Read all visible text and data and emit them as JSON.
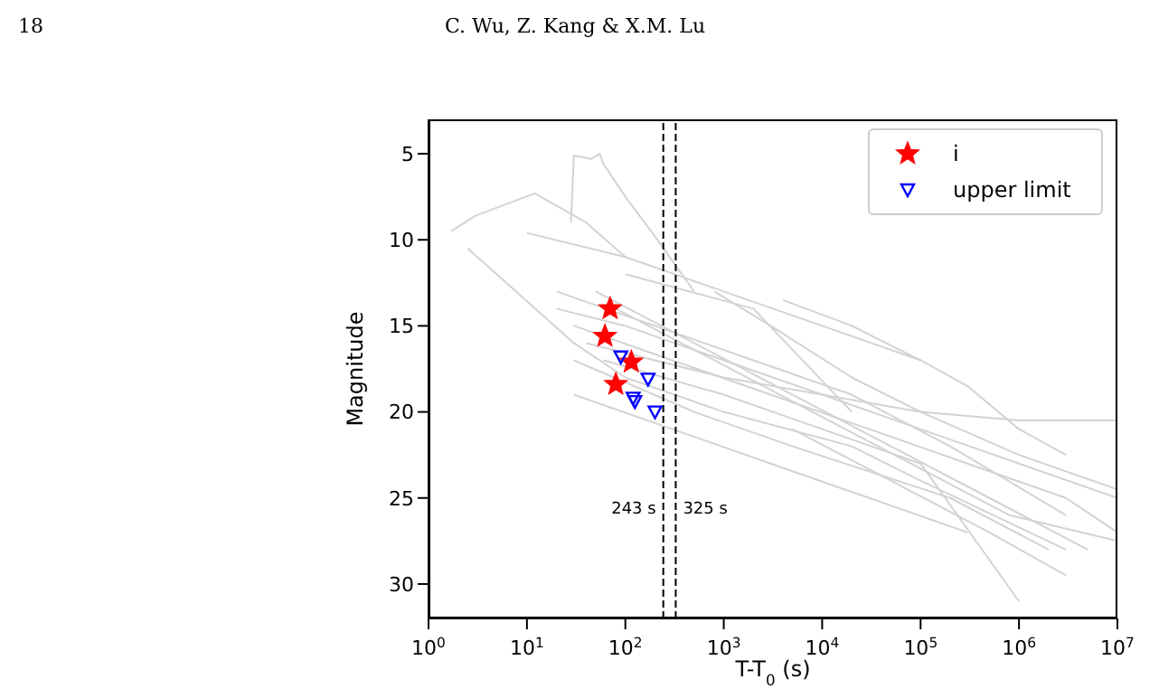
{
  "chart_data": {
    "type": "scatter",
    "xlabel": "T-T$_{0}$ (s)",
    "ylabel": "Magnitude",
    "log": "x",
    "xlim": [
      1,
      10000000
    ],
    "ylim": [
      32,
      3
    ],
    "xticks": [
      {
        "value": 1,
        "label": "10$^{0}$"
      },
      {
        "value": 10,
        "label": "10$^{1}$"
      },
      {
        "value": 100,
        "label": "10$^{2}$"
      },
      {
        "value": 1000,
        "label": "10$^{3}$"
      },
      {
        "value": 10000,
        "label": "10$^{4}$"
      },
      {
        "value": 100000,
        "label": "10$^{5}$"
      },
      {
        "value": 1000000,
        "label": "10$^{6}$"
      },
      {
        "value": 10000000,
        "label": "10$^{7}$"
      }
    ],
    "yticks": [
      5,
      10,
      15,
      20,
      25,
      30
    ],
    "grid": false,
    "legend": "top right",
    "annotations": [
      "18",
      "C. Wu, Z. Kang & X.M. Lu"
    ],
    "ref_lines": [
      {
        "axis": "x",
        "value": 243,
        "label": "243 s",
        "color": "#000000",
        "line_style": "dashed"
      },
      {
        "axis": "x",
        "value": 325,
        "label": "325 s",
        "color": "#000000",
        "line_style": "dashed"
      }
    ],
    "series": [
      {
        "type": "line",
        "color": "#d3d3d3",
        "marker": "none",
        "x": [
          1.7,
          3,
          12,
          40,
          100
        ],
        "values": [
          9.5,
          8.6,
          7.3,
          9,
          11
        ]
      },
      {
        "type": "line",
        "color": "#d3d3d3",
        "marker": "none",
        "x": [
          28,
          30,
          45,
          55,
          60,
          100,
          200,
          500
        ],
        "values": [
          9,
          5.1,
          5.3,
          5,
          5.6,
          7.5,
          9.8,
          13
        ]
      },
      {
        "type": "line",
        "color": "#d3d3d3",
        "marker": "none",
        "x": [
          2.5,
          30,
          100
        ],
        "values": [
          10.5,
          16,
          18
        ]
      },
      {
        "type": "line",
        "color": "#d3d3d3",
        "marker": "none",
        "x": [
          10,
          100,
          1000,
          10000,
          100000
        ],
        "values": [
          9.6,
          11,
          13,
          15,
          17
        ]
      },
      {
        "type": "line",
        "color": "#d3d3d3",
        "marker": "none",
        "x": [
          4000,
          20000,
          100000,
          300000,
          1000000,
          3000000
        ],
        "values": [
          13.5,
          15,
          17,
          18.5,
          21,
          22.5
        ]
      },
      {
        "type": "line",
        "color": "#d3d3d3",
        "marker": "none",
        "x": [
          20,
          100,
          1000,
          10000,
          100000,
          1000000,
          10000000
        ],
        "values": [
          14,
          15,
          17,
          19,
          21,
          23,
          25
        ]
      },
      {
        "type": "line",
        "color": "#d3d3d3",
        "marker": "none",
        "x": [
          30,
          300,
          3000,
          30000,
          300000,
          3000000,
          10000000
        ],
        "values": [
          15,
          17,
          19,
          21,
          23,
          25,
          27
        ]
      },
      {
        "type": "line",
        "color": "#d3d3d3",
        "marker": "none",
        "x": [
          50,
          500,
          5000,
          50000,
          500000,
          5000000
        ],
        "values": [
          13,
          16,
          19,
          22,
          25,
          28
        ]
      },
      {
        "type": "line",
        "color": "#d3d3d3",
        "marker": "none",
        "x": [
          40,
          1000,
          10000,
          100000,
          1000000,
          10000000
        ],
        "values": [
          16,
          18,
          19,
          20,
          20.5,
          20.5
        ]
      },
      {
        "type": "line",
        "color": "#d3d3d3",
        "marker": "none",
        "x": [
          60,
          1000,
          10000,
          100000,
          1000000
        ],
        "values": [
          17,
          19,
          21,
          23,
          31
        ]
      },
      {
        "type": "line",
        "color": "#d3d3d3",
        "marker": "none",
        "x": [
          100,
          1000,
          20000,
          100000,
          3000000
        ],
        "values": [
          18,
          20,
          22,
          24,
          28
        ]
      },
      {
        "type": "line",
        "color": "#d3d3d3",
        "marker": "none",
        "x": [
          20,
          200,
          2000,
          20000,
          200000,
          3000000
        ],
        "values": [
          13,
          15,
          17,
          19,
          22,
          26
        ]
      },
      {
        "type": "line",
        "color": "#d3d3d3",
        "marker": "none",
        "x": [
          80,
          800,
          8000,
          80000,
          800000,
          10000000
        ],
        "values": [
          14,
          17,
          20,
          23,
          26,
          27.5
        ]
      },
      {
        "type": "line",
        "color": "#d3d3d3",
        "marker": "none",
        "x": [
          30,
          300,
          3000,
          30000,
          300000
        ],
        "values": [
          19,
          21,
          23,
          25,
          27
        ]
      },
      {
        "type": "line",
        "color": "#d3d3d3",
        "marker": "none",
        "x": [
          100,
          2000,
          20000
        ],
        "values": [
          12,
          14,
          20
        ]
      },
      {
        "type": "line",
        "color": "#d3d3d3",
        "marker": "none",
        "x": [
          5000,
          50000,
          500000,
          3000000
        ],
        "values": [
          21,
          24,
          27,
          29.5
        ]
      },
      {
        "type": "line",
        "color": "#d3d3d3",
        "marker": "none",
        "x": [
          30,
          500,
          5000,
          200000,
          2000000
        ],
        "values": [
          17,
          20,
          22,
          25,
          28
        ]
      },
      {
        "type": "line",
        "color": "#d3d3d3",
        "marker": "none",
        "x": [
          800,
          3000,
          20000,
          100000,
          1000000,
          10000000
        ],
        "values": [
          13,
          15,
          18,
          20,
          22.5,
          24.5
        ]
      },
      {
        "name": "i",
        "color": "#ff0000",
        "marker": "star",
        "x": [
          70,
          62,
          115,
          80
        ],
        "values": [
          14,
          15.6,
          17.1,
          18.4
        ]
      },
      {
        "name": "upper limit",
        "color": "#0000ff",
        "marker": "triangle",
        "x": [
          90,
          170,
          120,
          125,
          200
        ],
        "values": [
          16.8,
          18.1,
          19.2,
          19.4,
          20
        ]
      }
    ]
  }
}
